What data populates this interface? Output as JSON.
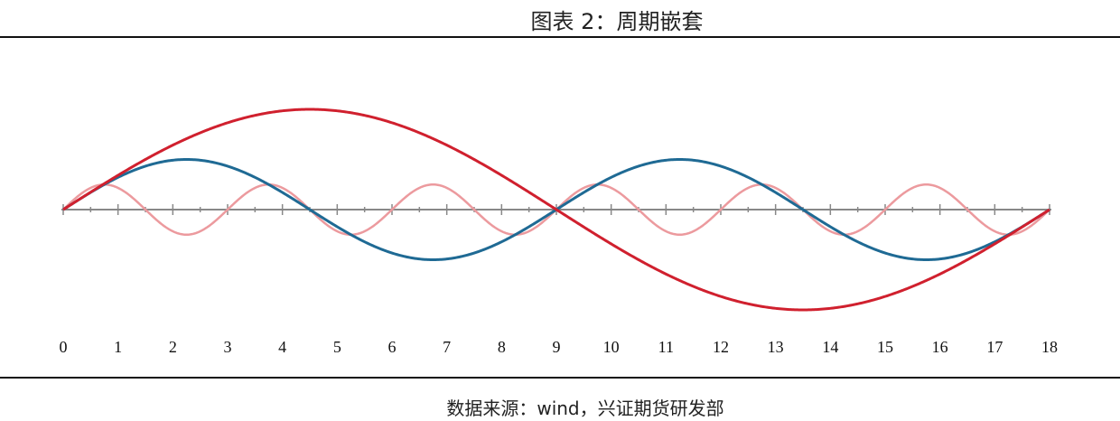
{
  "title": "图表 2：周期嵌套",
  "source": "数据来源：wind，兴证期货研发部",
  "chart_data": {
    "type": "line",
    "title": "图表 2：周期嵌套",
    "xlabel": "",
    "ylabel": "",
    "xlim": [
      0,
      18
    ],
    "ylim": [
      -4.4,
      4.4
    ],
    "x_ticks": [
      "0",
      "1",
      "2",
      "3",
      "4",
      "5",
      "6",
      "7",
      "8",
      "9",
      "10",
      "11",
      "12",
      "13",
      "14",
      "15",
      "16",
      "17",
      "18"
    ],
    "x_minor_tick_step": 0.5,
    "y_axis_visible": false,
    "grid": false,
    "legend": "none",
    "series": [
      {
        "function": "sine",
        "period": 18,
        "amplitude": 4,
        "color": "#d0202e"
      },
      {
        "function": "sine",
        "period": 9,
        "amplitude": 2,
        "color": "#1f6a94"
      },
      {
        "function": "sine",
        "period": 3,
        "amplitude": 1,
        "color": "#ec9a9e"
      }
    ],
    "axis_color": "#888888"
  }
}
